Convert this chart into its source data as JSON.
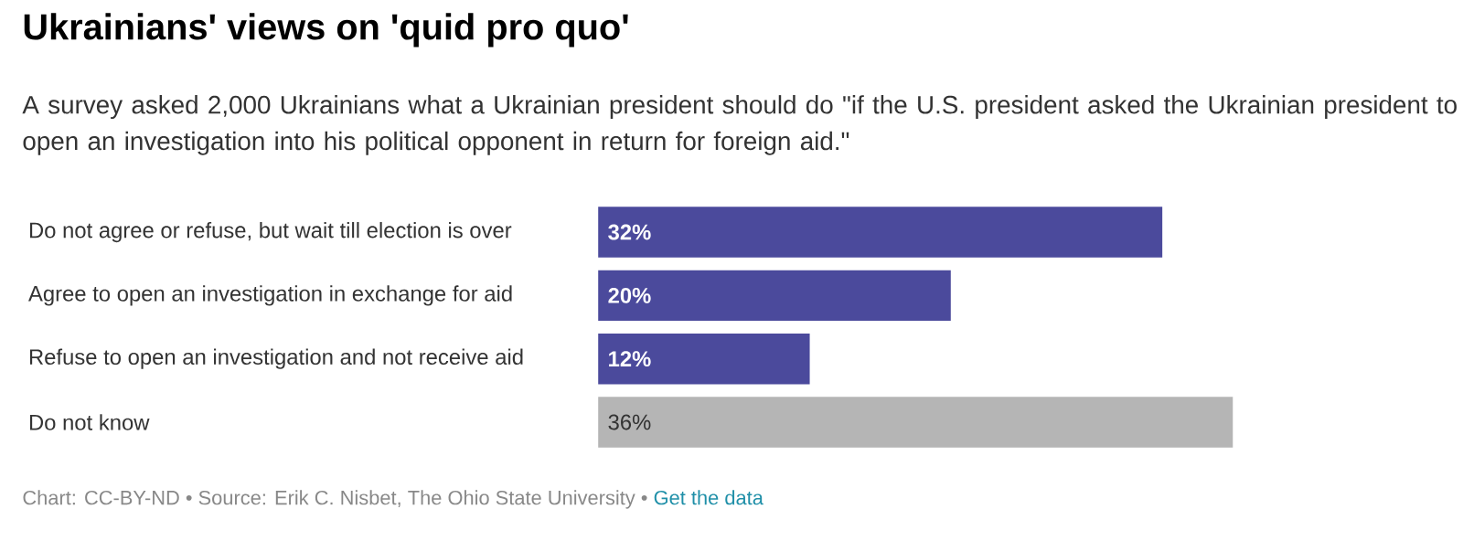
{
  "chart_data": {
    "type": "bar",
    "orientation": "horizontal",
    "title": "Ukrainians' views on 'quid pro quo'",
    "subtitle": "A survey asked 2,000 Ukrainians what a Ukrainian president should do \"if the U.S. president asked the Ukrainian president to open an investigation into his political opponent in return for foreign aid.\"",
    "categories": [
      "Do not agree or refuse, but wait till election is over",
      "Agree to open an investigation in exchange for aid",
      "Refuse to open an investigation and not receive aid",
      "Do not know"
    ],
    "values": [
      32,
      20,
      12,
      36
    ],
    "colors": [
      "#4b4a9c",
      "#4b4a9c",
      "#4b4a9c",
      "#b5b5b5"
    ],
    "value_labels": [
      "32%",
      "20%",
      "12%",
      "36%"
    ],
    "annotations": [
      "Chart: CC-BY-ND • Source: Erik C. Nisbet, The Ohio State University • ",
      "Get the data"
    ]
  }
}
